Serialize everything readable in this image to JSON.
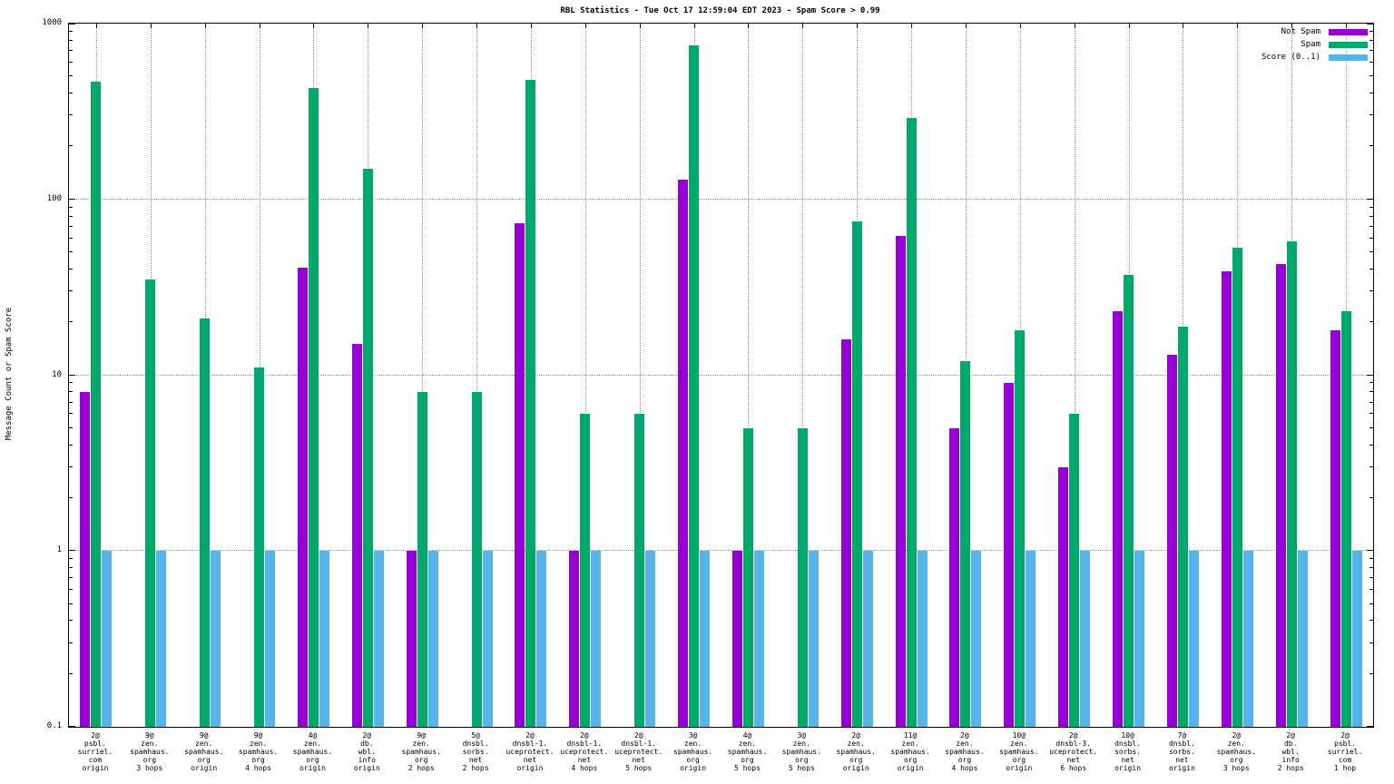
{
  "title": "RBL Statistics - Tue Oct 17 12:59:04 EDT 2023 - Spam Score > 0.99",
  "ylabel": "Message Count or Spam Score",
  "legend": [
    {
      "label": "Not Spam",
      "color": "#9400D3"
    },
    {
      "label": "Spam",
      "color": "#00A86B"
    },
    {
      "label": "Score (0..1)",
      "color": "#56B4E9"
    }
  ],
  "chart_data": {
    "type": "bar",
    "title": "RBL Statistics - Tue Oct 17 12:59:04 EDT 2023 - Spam Score > 0.99",
    "ylabel": "Message Count or Spam Score",
    "y_scale": "log",
    "ylim": [
      0.1,
      1000
    ],
    "grid": true,
    "legend_position": "top-right",
    "y_ticks": {
      "values": [
        0.1,
        1,
        10,
        100,
        1000
      ],
      "labels": [
        "0.1",
        "1",
        "10",
        "100",
        "1000"
      ]
    },
    "categories": [
      [
        "2@",
        "psbl.",
        "surriel.",
        "com",
        "origin"
      ],
      [
        "9@",
        "zen.",
        "spamhaus.",
        "org",
        "3 hops"
      ],
      [
        "9@",
        "zen.",
        "spamhaus.",
        "org",
        "origin"
      ],
      [
        "9@",
        "zen.",
        "spamhaus.",
        "org",
        "4 hops"
      ],
      [
        "4@",
        "zen.",
        "spamhaus.",
        "org",
        "origin"
      ],
      [
        "2@",
        "db.",
        "wbl.",
        "info",
        "origin"
      ],
      [
        "9@",
        "zen.",
        "spamhaus.",
        "org",
        "2 hops"
      ],
      [
        "5@",
        "dnsbl.",
        "sorbs.",
        "net",
        "2 hops"
      ],
      [
        "2@",
        "dnsbl-1.",
        "uceprotect.",
        "net",
        "origin"
      ],
      [
        "2@",
        "dnsbl-1.",
        "uceprotect.",
        "net",
        "4 hops"
      ],
      [
        "2@",
        "dnsbl-1.",
        "uceprotect.",
        "net",
        "5 hops"
      ],
      [
        "3@",
        "zen.",
        "spamhaus.",
        "org",
        "origin"
      ],
      [
        "4@",
        "zen.",
        "spamhaus.",
        "org",
        "5 hops"
      ],
      [
        "3@",
        "zen.",
        "spamhaus.",
        "org",
        "5 hops"
      ],
      [
        "2@",
        "zen.",
        "spamhaus.",
        "org",
        "origin"
      ],
      [
        "11@",
        "zen.",
        "spamhaus.",
        "org",
        "origin"
      ],
      [
        "2@",
        "zen.",
        "spamhaus.",
        "org",
        "4 hops"
      ],
      [
        "10@",
        "zen.",
        "spamhaus.",
        "org",
        "origin"
      ],
      [
        "2@",
        "dnsbl-3.",
        "uceprotect.",
        "net",
        "6 hops"
      ],
      [
        "10@",
        "dnsbl.",
        "sorbs.",
        "net",
        "origin"
      ],
      [
        "7@",
        "dnsbl.",
        "sorbs.",
        "net",
        "origin"
      ],
      [
        "2@",
        "zen.",
        "spamhaus.",
        "org",
        "3 hops"
      ],
      [
        "2@",
        "db.",
        "wbl.",
        "info",
        "2 hops"
      ],
      [
        "2@",
        "psbl.",
        "surriel.",
        "com",
        "1 hop"
      ]
    ],
    "series": [
      {
        "name": "Not Spam",
        "color": "#9400D3",
        "values": [
          8,
          null,
          null,
          null,
          41,
          15,
          1,
          null,
          73,
          1,
          null,
          130,
          1,
          null,
          16,
          62,
          5,
          9,
          3,
          23,
          13,
          39,
          43,
          18
        ]
      },
      {
        "name": "Spam",
        "color": "#00A86B",
        "values": [
          470,
          35,
          21,
          11,
          430,
          150,
          8,
          8,
          480,
          6,
          6,
          750,
          5,
          5,
          75,
          290,
          12,
          18,
          6,
          37,
          19,
          53,
          58,
          23
        ]
      },
      {
        "name": "Score (0..1)",
        "color": "#56B4E9",
        "values": [
          1,
          1,
          1,
          1,
          1,
          1,
          1,
          1,
          1,
          1,
          1,
          1,
          1,
          1,
          1,
          1,
          1,
          1,
          1,
          1,
          1,
          1,
          1,
          1
        ]
      }
    ]
  }
}
